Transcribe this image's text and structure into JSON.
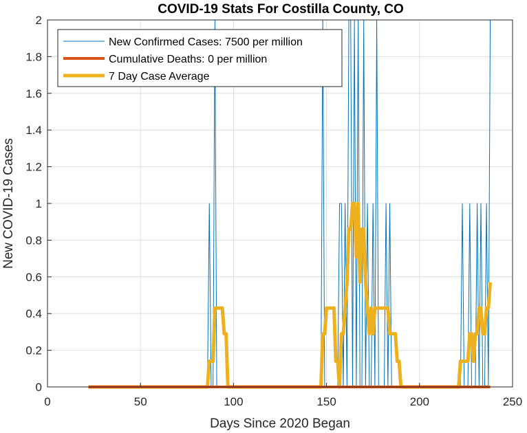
{
  "chart_data": {
    "type": "line",
    "title": "COVID-19 Stats For Costilla County, CO",
    "xlabel": "Days Since 2020 Began",
    "ylabel": "New COVID-19 Cases",
    "xlim": [
      0,
      250
    ],
    "ylim": [
      0,
      2
    ],
    "xticks": [
      0,
      50,
      100,
      150,
      200,
      250
    ],
    "yticks": [
      0,
      0.2,
      0.4,
      0.6,
      0.8,
      1,
      1.2,
      1.4,
      1.6,
      1.8,
      2
    ],
    "xtick_labels": [
      "0",
      "50",
      "100",
      "150",
      "200",
      "250"
    ],
    "ytick_labels": [
      "0",
      "0.2",
      "0.4",
      "0.6",
      "0.8",
      "1",
      "1.2",
      "1.4",
      "1.6",
      "1.8",
      "2"
    ],
    "grid": true,
    "legend_location": "top-left",
    "series": [
      {
        "name": "New Confirmed Cases: 7500 per million",
        "color": "#0072BD",
        "line_width": 1,
        "x": [
          22,
          86,
          87,
          88,
          89,
          90,
          91,
          147,
          148,
          149,
          150,
          151,
          152,
          153,
          154,
          155,
          156,
          157,
          158,
          159,
          160,
          161,
          162,
          163,
          164,
          165,
          166,
          167,
          168,
          169,
          170,
          171,
          172,
          173,
          174,
          175,
          176,
          177,
          178,
          179,
          180,
          181,
          182,
          183,
          184,
          185,
          186,
          187,
          221,
          222,
          223,
          224,
          225,
          226,
          227,
          228,
          229,
          230,
          231,
          232,
          233,
          234,
          235,
          236,
          237,
          238
        ],
        "y": [
          0,
          0,
          1,
          0,
          0,
          2,
          0,
          0,
          2,
          0,
          0,
          0,
          0,
          0,
          0,
          0,
          0,
          1,
          1,
          0,
          1,
          0,
          2,
          2,
          0,
          2,
          0,
          2,
          0,
          0,
          2,
          0,
          1,
          0,
          0,
          1,
          0,
          2,
          0,
          0,
          0,
          0,
          1,
          0,
          1,
          0,
          0,
          0,
          0,
          0,
          1,
          0,
          0,
          0,
          1,
          0,
          0,
          0,
          1,
          0,
          1,
          0,
          0,
          1,
          0,
          2
        ]
      },
      {
        "name": "Cumulative Deaths: 0 per million",
        "color": "#D95319",
        "line_width": 4,
        "x": [
          22,
          238
        ],
        "y": [
          0,
          0
        ]
      },
      {
        "name": "7 Day Case Average",
        "color": "#EDB120",
        "line_width": 5,
        "x": [
          22,
          86,
          87,
          89,
          90,
          94,
          95,
          96,
          97,
          147,
          148,
          149,
          150,
          151,
          154,
          155,
          156,
          157,
          158,
          159,
          160,
          161,
          162,
          163,
          164,
          165,
          166,
          167,
          168,
          169,
          170,
          171,
          172,
          173,
          174,
          175,
          176,
          177,
          178,
          183,
          184,
          187,
          188,
          189,
          190,
          220,
          221,
          222,
          226,
          227,
          228,
          229,
          230,
          231,
          232,
          233,
          234,
          235,
          236,
          237,
          238
        ],
        "y": [
          0,
          0,
          0.14,
          0.14,
          0.43,
          0.43,
          0.29,
          0.29,
          0,
          0,
          0.29,
          0.29,
          0.43,
          0.43,
          0.43,
          0.14,
          0.14,
          0,
          0.29,
          0.29,
          0.43,
          0.57,
          0.86,
          0.86,
          1,
          1,
          0.71,
          1,
          0.57,
          0.86,
          0.86,
          0.57,
          0.43,
          0.29,
          0.43,
          0.29,
          0.43,
          0.43,
          0.43,
          0.43,
          0.29,
          0.29,
          0.14,
          0.14,
          0,
          0,
          0,
          0.14,
          0.14,
          0.29,
          0.29,
          0.14,
          0.29,
          0.29,
          0.43,
          0.43,
          0.29,
          0.29,
          0.43,
          0.43,
          0.57
        ]
      }
    ]
  }
}
